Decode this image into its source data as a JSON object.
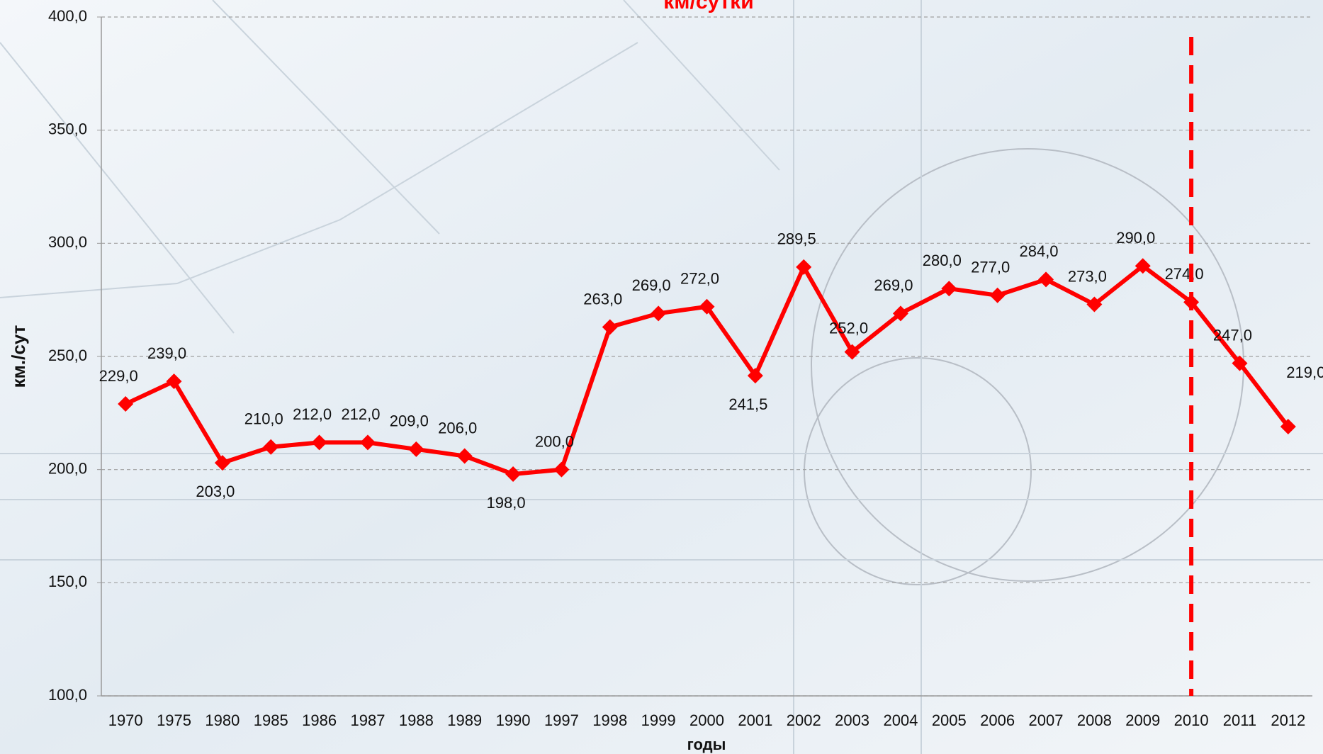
{
  "chart_data": {
    "type": "line",
    "title": "км/сутки",
    "ylabel": "км./сут",
    "xlabel": "годы",
    "categories": [
      "1970",
      "1975",
      "1980",
      "1985",
      "1986",
      "1987",
      "1988",
      "1989",
      "1990",
      "1997",
      "1998",
      "1999",
      "2000",
      "2001",
      "2002",
      "2003",
      "2004",
      "2005",
      "2006",
      "2007",
      "2008",
      "2009",
      "2010",
      "2011",
      "2012"
    ],
    "series": [
      {
        "color": "#ff0000",
        "values": [
          229,
          239,
          203,
          210,
          212,
          212,
          209,
          206,
          198,
          200,
          263,
          269,
          272,
          241.5,
          289.5,
          252,
          269,
          280,
          277,
          284,
          273,
          290,
          274,
          247,
          219
        ],
        "value_labels": [
          "229,0",
          "239,0",
          "203,0",
          "210,0",
          "212,0",
          "212,0",
          "209,0",
          "206,0",
          "198,0",
          "200,0",
          "263,0",
          "269,0",
          "272,0",
          "241,5",
          "289,5",
          "252,0",
          "269,0",
          "280,0",
          "277,0",
          "284,0",
          "273,0",
          "290,0",
          "274,0",
          "247,0",
          "219,0"
        ]
      }
    ],
    "ylim": [
      100,
      400
    ],
    "yticks": [
      {
        "value": 100,
        "label": "100,0"
      },
      {
        "value": 150,
        "label": "150,0"
      },
      {
        "value": 200,
        "label": "200,0"
      },
      {
        "value": 250,
        "label": "250,0"
      },
      {
        "value": 300,
        "label": "300,0"
      },
      {
        "value": 350,
        "label": "350,0"
      },
      {
        "value": 400,
        "label": "400,0"
      }
    ],
    "grid": true,
    "vline_at": "2010"
  }
}
